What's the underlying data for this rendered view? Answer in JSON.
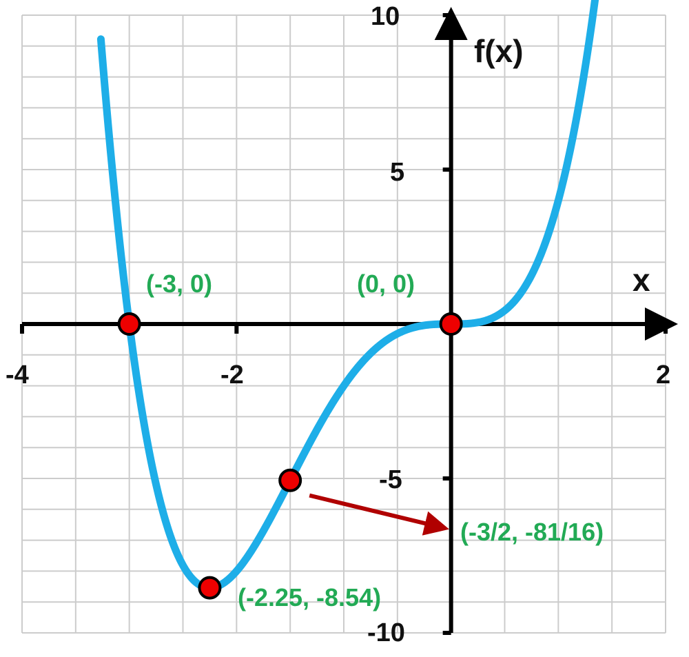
{
  "chart_data": {
    "type": "line",
    "function": "f(x) = x^4 + 3x^3",
    "xlim": [
      -4,
      2
    ],
    "ylim": [
      -10,
      10
    ],
    "grid": true,
    "grid_minor_x_step": 0.5,
    "grid_minor_y_step": 1,
    "xlabel": "x",
    "ylabel": "f(x)",
    "x_ticks": [
      {
        "value": -4,
        "label": "-4"
      },
      {
        "value": -2,
        "label": "-2"
      },
      {
        "value": 2,
        "label": "2"
      }
    ],
    "y_ticks": [
      {
        "value": 10,
        "label": "10"
      },
      {
        "value": 5,
        "label": "5"
      },
      {
        "value": -5,
        "label": "-5"
      },
      {
        "value": -10,
        "label": "-10"
      }
    ],
    "series": [
      {
        "color": "#1eaee8",
        "x": [
          -3.2,
          -3.1,
          -3.0,
          -2.9,
          -2.8,
          -2.7,
          -2.6,
          -2.5,
          -2.4,
          -2.3,
          -2.25,
          -2.2,
          -2.1,
          -2.0,
          -1.9,
          -1.8,
          -1.7,
          -1.6,
          -1.5,
          -1.4,
          -1.3,
          -1.2,
          -1.1,
          -1.0,
          -0.9,
          -0.8,
          -0.7,
          -0.6,
          -0.5,
          -0.4,
          -0.3,
          -0.2,
          -0.1,
          0.0,
          0.1,
          0.2,
          0.3,
          0.4,
          0.5,
          0.6,
          0.7,
          0.8,
          0.9,
          1.0,
          1.1,
          1.2,
          1.3
        ],
        "y": [
          6.55,
          2.97,
          0.0,
          -2.44,
          -4.39,
          -5.9,
          -7.04,
          -7.81,
          -8.29,
          -8.52,
          -8.54,
          -8.49,
          -8.33,
          -8.0,
          -7.54,
          -6.99,
          -6.39,
          -5.73,
          -5.06,
          -4.4,
          -3.74,
          -3.11,
          -2.53,
          -2.0,
          -1.53,
          -1.13,
          -0.79,
          -0.52,
          -0.31,
          -0.17,
          -0.07,
          -0.02,
          -0.003,
          0.0,
          0.003,
          0.026,
          0.089,
          0.218,
          0.44,
          0.78,
          1.27,
          1.94,
          2.84,
          4.0,
          5.46,
          7.26,
          9.45
        ]
      }
    ],
    "points": [
      {
        "x": -3,
        "y": 0,
        "label": "(-3, 0)"
      },
      {
        "x": 0,
        "y": 0,
        "label": "(0, 0)"
      },
      {
        "x": -2.25,
        "y": -8.54,
        "label": "(-2.25, -8.54)"
      },
      {
        "x": -1.5,
        "y": -5.0625,
        "label": "(-3/2, -81/16)"
      }
    ],
    "colors": {
      "curve": "#1eaee8",
      "point_fill": "#ee0000",
      "point_stroke": "#000000",
      "label": "#22aa55",
      "arrow": "#b00000",
      "axis": "#000000",
      "grid": "#cccccc"
    }
  }
}
